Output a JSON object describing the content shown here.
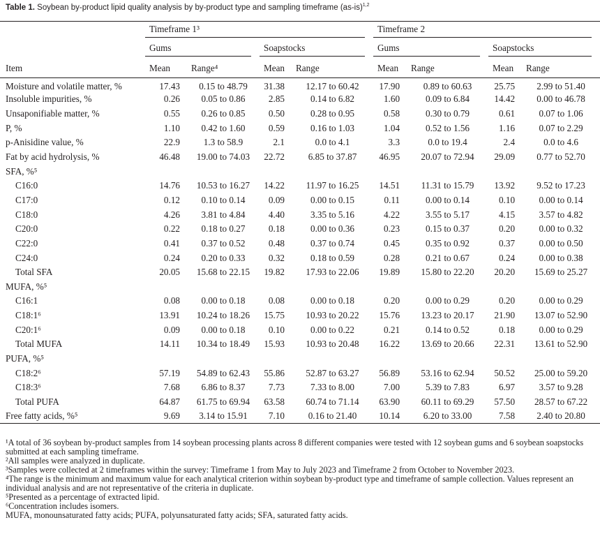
{
  "caption": {
    "label": "Table 1.",
    "text": "Soybean by-product lipid quality analysis by by-product type and sampling timeframe (as-is)",
    "sup": "1,2"
  },
  "header": {
    "timeframes": [
      "Timeframe 1³",
      "Timeframe 2"
    ],
    "types": [
      "Gums",
      "Soapstocks",
      "Gums",
      "Soapstocks"
    ],
    "item": "Item",
    "columns": [
      "Mean",
      "Range⁴",
      "Mean",
      "Range",
      "Mean",
      "Range",
      "Mean",
      "Range"
    ]
  },
  "table": {
    "rows": [
      [
        "Moisture and volatile matter, %",
        "17.43",
        "0.15 to 48.79",
        "31.38",
        "12.17 to 60.42",
        "17.90",
        "0.89 to 60.63",
        "25.75",
        "2.99 to 51.40"
      ],
      [
        "Insoluble impurities, %",
        "0.26",
        "0.05 to 0.86",
        "2.85",
        "0.14 to 6.82",
        "1.60",
        "0.09 to 6.84",
        "14.42",
        "0.00 to 46.78"
      ],
      [
        "Unsaponifiable matter, %",
        "0.55",
        "0.26 to 0.85",
        "0.50",
        "0.28 to 0.95",
        "0.58",
        "0.30 to 0.79",
        "0.61",
        "0.07 to 1.06"
      ],
      [
        "P, %",
        "1.10",
        "0.42 to 1.60",
        "0.59",
        "0.16 to 1.03",
        "1.04",
        "0.52 to 1.56",
        "1.16",
        "0.07 to 2.29"
      ],
      [
        "p-Anisidine value, %",
        "22.9",
        "1.3 to 58.9",
        "2.1",
        "0.0 to 4.1",
        "3.3",
        "0.0 to 19.4",
        "2.4",
        "0.0 to 4.6"
      ],
      [
        "Fat by acid hydrolysis, %",
        "46.48",
        "19.00 to 74.03",
        "22.72",
        "6.85 to 37.87",
        "46.95",
        "20.07 to 72.94",
        "29.09",
        "0.77 to 52.70"
      ],
      {
        "group": "SFA, %⁵",
        "rows": [
          [
            "C16:0",
            "14.76",
            "10.53 to 16.27",
            "14.22",
            "11.97 to 16.25",
            "14.51",
            "11.31 to 15.79",
            "13.92",
            "9.52 to 17.23"
          ],
          [
            "C17:0",
            "0.12",
            "0.10 to 0.14",
            "0.09",
            "0.00 to 0.15",
            "0.11",
            "0.00 to 0.14",
            "0.10",
            "0.00 to 0.14"
          ],
          [
            "C18:0",
            "4.26",
            "3.81 to 4.84",
            "4.40",
            "3.35 to 5.16",
            "4.22",
            "3.55 to 5.17",
            "4.15",
            "3.57 to 4.82"
          ],
          [
            "C20:0",
            "0.22",
            "0.18 to 0.27",
            "0.18",
            "0.00 to 0.36",
            "0.23",
            "0.15 to 0.37",
            "0.20",
            "0.00 to 0.32"
          ],
          [
            "C22:0",
            "0.41",
            "0.37 to 0.52",
            "0.48",
            "0.37 to 0.74",
            "0.45",
            "0.35 to 0.92",
            "0.37",
            "0.00 to 0.50"
          ],
          [
            "C24:0",
            "0.24",
            "0.20 to 0.33",
            "0.32",
            "0.18 to 0.59",
            "0.28",
            "0.21 to 0.67",
            "0.24",
            "0.00 to 0.38"
          ],
          [
            "Total SFA",
            "20.05",
            "15.68 to 22.15",
            "19.82",
            "17.93 to 22.06",
            "19.89",
            "15.80 to 22.20",
            "20.20",
            "15.69 to 25.27"
          ]
        ]
      },
      {
        "group": "MUFA, %⁵",
        "rows": [
          [
            "C16:1",
            "0.08",
            "0.00 to 0.18",
            "0.08",
            "0.00 to 0.18",
            "0.20",
            "0.00 to 0.29",
            "0.20",
            "0.00 to 0.29"
          ],
          [
            "C18:1⁶",
            "13.91",
            "10.24 to 18.26",
            "15.75",
            "10.93 to 20.22",
            "15.76",
            "13.23 to 20.17",
            "21.90",
            "13.07 to 52.90"
          ],
          [
            "C20:1⁶",
            "0.09",
            "0.00 to 0.18",
            "0.10",
            "0.00 to 0.22",
            "0.21",
            "0.14 to 0.52",
            "0.18",
            "0.00 to 0.29"
          ],
          [
            "Total MUFA",
            "14.11",
            "10.34 to 18.49",
            "15.93",
            "10.93 to 20.48",
            "16.22",
            "13.69 to 20.66",
            "22.31",
            "13.61 to 52.90"
          ]
        ]
      },
      {
        "group": "PUFA, %⁵",
        "rows": [
          [
            "C18:2⁶",
            "57.19",
            "54.89 to 62.43",
            "55.86",
            "52.87 to 63.27",
            "56.89",
            "53.16 to 62.94",
            "50.52",
            "25.00 to 59.20"
          ],
          [
            "C18:3⁶",
            "7.68",
            "6.86 to 8.37",
            "7.73",
            "7.33 to 8.00",
            "7.00",
            "5.39 to 7.83",
            "6.97",
            "3.57 to 9.28"
          ],
          [
            "Total PUFA",
            "64.87",
            "61.75 to 69.94",
            "63.58",
            "60.74 to 71.14",
            "63.90",
            "60.11 to 69.29",
            "57.50",
            "28.57 to 67.22"
          ]
        ]
      },
      [
        "Free fatty acids, %⁵",
        "9.69",
        "3.14 to 15.91",
        "7.10",
        "0.16 to 21.40",
        "10.14",
        "6.20 to 33.00",
        "7.58",
        "2.40 to 20.80"
      ]
    ]
  },
  "footnotes": [
    "¹A total of 36 soybean by-product samples from 14 soybean processing plants across 8 different companies were tested with 12 soybean gums and 6 soybean soapstocks submitted at each sampling timeframe.",
    "²All samples were analyzed in duplicate.",
    "³Samples were collected at 2 timeframes within the survey: Timeframe 1 from May to July 2023 and Timeframe 2 from October to November 2023.",
    "⁴The range is the minimum and maximum value for each analytical criterion within soybean by-product type and timeframe of sample collection. Values represent an individual analysis and are not representative of the criteria in duplicate.",
    "⁵Presented as a percentage of extracted lipid.",
    "⁶Concentration includes isomers.",
    "MUFA, monounsaturated fatty acids; PUFA, polyunsaturated fatty acids; SFA, saturated fatty acids."
  ]
}
